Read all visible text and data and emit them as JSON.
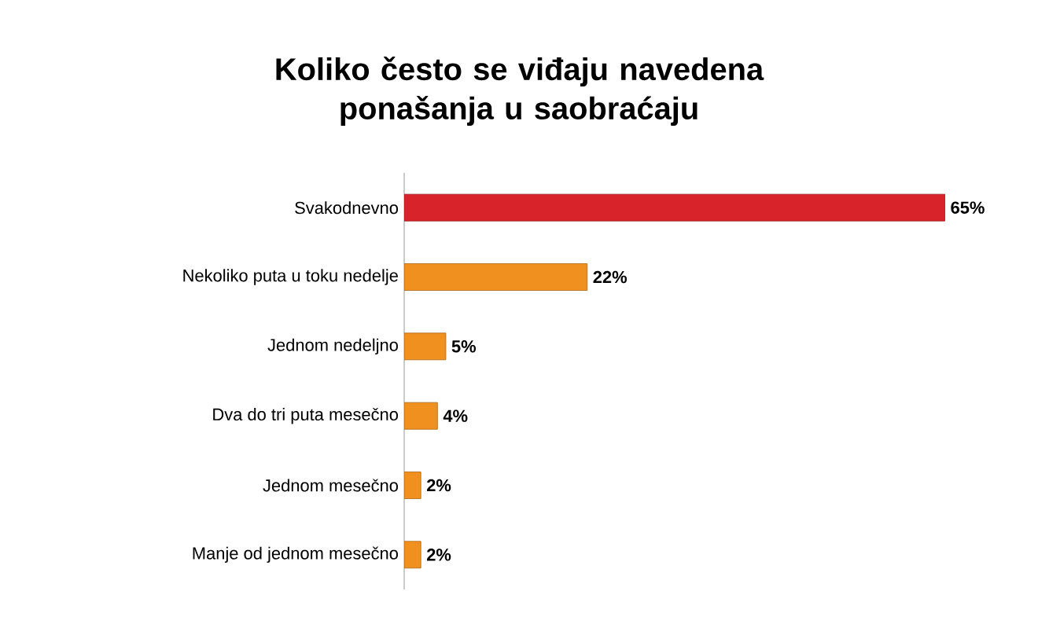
{
  "chart_data": {
    "type": "bar",
    "orientation": "horizontal",
    "title": "Koliko često se viđaju navedena ponašanja u saobraćaju",
    "categories": [
      "Svakodnevno",
      "Nekoliko puta u toku nedelje",
      "Jednom nedeljno",
      "Dva do tri puta mesečno",
      "Jednom mesečno",
      "Manje od jednom mesečno"
    ],
    "values": [
      65,
      22,
      5,
      4,
      2,
      2
    ],
    "value_labels": [
      "65%",
      "22%",
      "5%",
      "4%",
      "2%",
      "2%"
    ],
    "colors": [
      "#d9232a",
      "#f0901e",
      "#f0901e",
      "#f0901e",
      "#f0901e",
      "#f0901e"
    ]
  }
}
